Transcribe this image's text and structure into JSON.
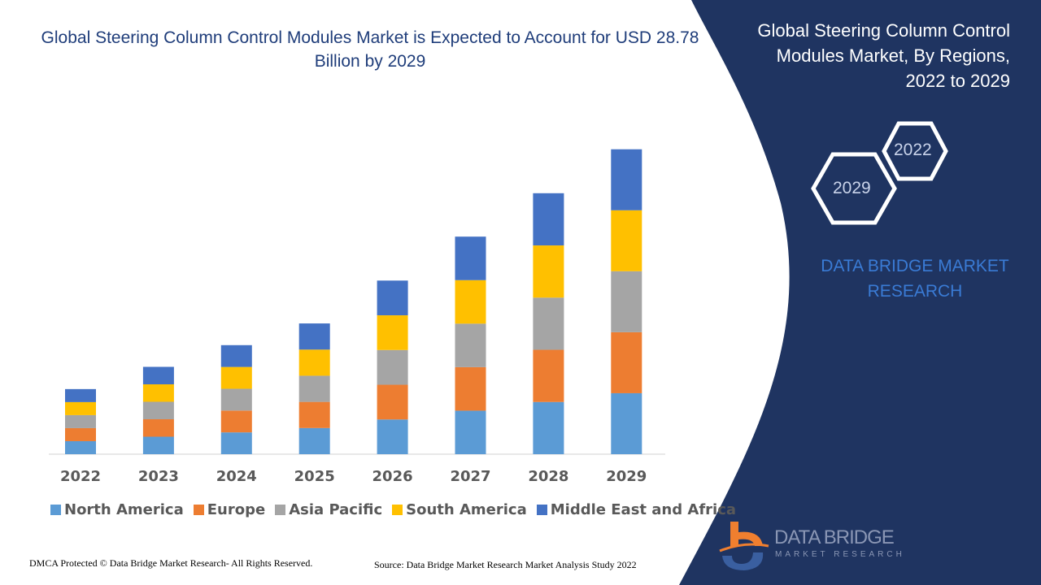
{
  "title": "Global Steering Column Control Modules Market is Expected to Account for USD 28.78 Billion by 2029",
  "side_panel": {
    "title": "Global Steering Column Control Modules Market, By Regions, 2022 to 2029",
    "hex_years": [
      "2022",
      "2029"
    ],
    "brand_text": "DATA BRIDGE MARKET RESEARCH",
    "logo_text": "DATA BRIDGE",
    "logo_subtext": "MARKET RESEARCH",
    "panel_color": "#1f3461"
  },
  "footer": {
    "left": "DMCA Protected © Data Bridge Market Research- All Rights Reserved.",
    "right": "Source: Data Bridge Market Research Market Analysis Study 2022"
  },
  "chart_data": {
    "type": "bar",
    "stacked": true,
    "title": "Global Steering Column Control Modules Market is Expected to Account for USD 28.78 Billion by 2029",
    "categories": [
      "2022",
      "2023",
      "2024",
      "2025",
      "2026",
      "2027",
      "2028",
      "2029"
    ],
    "series": [
      {
        "name": "North America",
        "color": "#5b9bd5",
        "values": [
          1.23,
          1.65,
          2.06,
          2.47,
          3.28,
          4.11,
          4.93,
          5.76
        ]
      },
      {
        "name": "Europe",
        "color": "#ed7d31",
        "values": [
          1.23,
          1.65,
          2.06,
          2.47,
          3.28,
          4.11,
          4.93,
          5.76
        ]
      },
      {
        "name": "Asia Pacific",
        "color": "#a5a5a5",
        "values": [
          1.23,
          1.65,
          2.06,
          2.47,
          3.28,
          4.11,
          4.93,
          5.76
        ]
      },
      {
        "name": "South America",
        "color": "#ffc000",
        "values": [
          1.23,
          1.65,
          2.06,
          2.47,
          3.28,
          4.11,
          4.93,
          5.76
        ]
      },
      {
        "name": "Middle East and Africa",
        "color": "#4472c4",
        "values": [
          1.23,
          1.65,
          2.06,
          2.47,
          3.28,
          4.11,
          4.93,
          5.76
        ]
      }
    ],
    "legend_position": "bottom",
    "grid": false
  }
}
